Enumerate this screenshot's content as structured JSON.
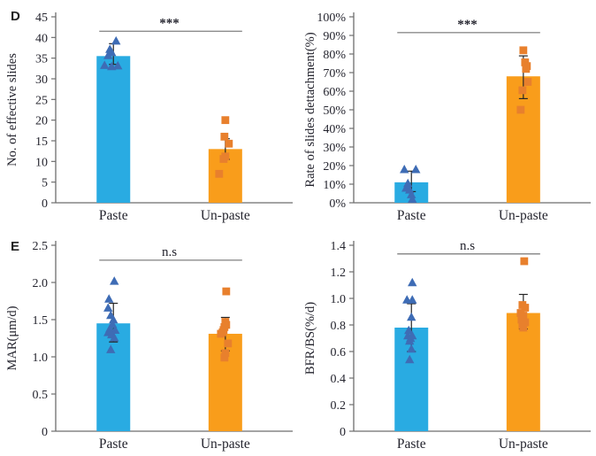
{
  "figure": {
    "panel_labels": [
      {
        "text": "D"
      },
      {
        "text": "E"
      }
    ]
  },
  "colors": {
    "paste_bar": "#29ABE2",
    "unpaste_bar": "#F99D1B",
    "paste_marker": "#3E6CB5",
    "unpaste_marker": "#E8802D",
    "error_bar": "#262626",
    "axis": "#6e6e6e",
    "sig_line": "#8c8c8c",
    "text": "#24242e"
  },
  "chart_data": [
    {
      "id": "effective-slides",
      "type": "bar",
      "panel": "D",
      "title": "",
      "xlabel": "",
      "ylabel": "No. of effective slides",
      "ylim": [
        0,
        45
      ],
      "yticks": [
        0,
        5,
        10,
        15,
        20,
        25,
        30,
        35,
        40,
        45
      ],
      "ytick_labels": [
        "0",
        "5",
        "10",
        "15",
        "20",
        "25",
        "30",
        "35",
        "40",
        "45"
      ],
      "categories": [
        "Paste",
        "Un-paste"
      ],
      "bar_values": [
        35.5,
        13
      ],
      "error_bars": [
        [
          33.5,
          38.5
        ],
        [
          10.5,
          15.5
        ]
      ],
      "marker_shapes": [
        "triangle",
        "square"
      ],
      "points": [
        [
          [
            3,
            39.2
          ],
          [
            -4,
            37.2
          ],
          [
            -2,
            36.4
          ],
          [
            -6,
            35.7
          ],
          [
            -10,
            33.3
          ],
          [
            -2,
            33.0
          ],
          [
            5,
            33.2
          ]
        ],
        [
          [
            0,
            20.0
          ],
          [
            -1,
            16.0
          ],
          [
            4,
            14.3
          ],
          [
            0,
            11.2
          ],
          [
            -2,
            10.6
          ],
          [
            -7,
            7.0
          ]
        ]
      ],
      "significance": {
        "label": "***",
        "y": 41.5
      },
      "grid": false,
      "legend": "none"
    },
    {
      "id": "slides-detachment-rate",
      "type": "bar",
      "panel": "D",
      "title": "",
      "xlabel": "",
      "ylabel": "Rate of slides dettachment(%)",
      "ylim": [
        0,
        100
      ],
      "yticks": [
        0,
        10,
        20,
        30,
        40,
        50,
        60,
        70,
        80,
        90,
        100
      ],
      "ytick_labels": [
        "0%",
        "10%",
        "20%",
        "30%",
        "40%",
        "50%",
        "60%",
        "70%",
        "80%",
        "90%",
        "100%"
      ],
      "categories": [
        "Paste",
        "Un-paste"
      ],
      "bar_values": [
        11,
        68
      ],
      "error_bars": [
        [
          6,
          17
        ],
        [
          56,
          79
        ]
      ],
      "marker_shapes": [
        "triangle",
        "square"
      ],
      "points": [
        [
          [
            -8,
            18.0
          ],
          [
            5,
            18.0
          ],
          [
            -4,
            10.5
          ],
          [
            -6,
            8.0
          ],
          [
            -2,
            7.0
          ],
          [
            0,
            4.5
          ],
          [
            1,
            2.0
          ]
        ],
        [
          [
            0,
            82.0
          ],
          [
            2,
            75.5
          ],
          [
            4,
            73.5
          ],
          [
            3,
            72.0
          ],
          [
            5,
            65.0
          ],
          [
            -1,
            60.5
          ],
          [
            -3,
            50.0
          ]
        ]
      ],
      "significance": {
        "label": "***",
        "y": 91.5
      },
      "grid": false,
      "legend": "none"
    },
    {
      "id": "mar",
      "type": "bar",
      "panel": "E",
      "title": "",
      "xlabel": "",
      "ylabel": "MAR(μm/d)",
      "ylim": [
        0,
        2.5
      ],
      "yticks": [
        0,
        0.5,
        1.0,
        1.5,
        2.0,
        2.5
      ],
      "ytick_labels": [
        "0",
        "0.5",
        "1.0",
        "1.5",
        "2.0",
        "2.5"
      ],
      "categories": [
        "Paste",
        "Un-paste"
      ],
      "bar_values": [
        1.45,
        1.31
      ],
      "error_bars": [
        [
          1.2,
          1.72
        ],
        [
          1.08,
          1.53
        ]
      ],
      "marker_shapes": [
        "triangle",
        "square"
      ],
      "points": [
        [
          [
            1,
            2.02
          ],
          [
            -5,
            1.78
          ],
          [
            -6,
            1.66
          ],
          [
            -3,
            1.56
          ],
          [
            0,
            1.5
          ],
          [
            -1,
            1.44
          ],
          [
            -4,
            1.38
          ],
          [
            2,
            1.36
          ],
          [
            -6,
            1.33
          ],
          [
            -2,
            1.3
          ],
          [
            1,
            1.26
          ],
          [
            -3,
            1.1
          ]
        ],
        [
          [
            1,
            1.88
          ],
          [
            0,
            1.47
          ],
          [
            1,
            1.43
          ],
          [
            -1,
            1.4
          ],
          [
            -2,
            1.36
          ],
          [
            -3,
            1.33
          ],
          [
            -5,
            1.31
          ],
          [
            3,
            1.18
          ],
          [
            0,
            1.05
          ],
          [
            -1,
            0.99
          ]
        ]
      ],
      "significance": {
        "label": "n.s",
        "y": 2.3
      },
      "grid": false,
      "legend": "none"
    },
    {
      "id": "bfr-bs",
      "type": "bar",
      "panel": "E",
      "title": "",
      "xlabel": "",
      "ylabel": "BFR/BS(%/d)",
      "ylim": [
        0,
        1.4
      ],
      "yticks": [
        0,
        0.2,
        0.4,
        0.6,
        0.8,
        1.0,
        1.2,
        1.4
      ],
      "ytick_labels": [
        "0",
        "0.2",
        "0.4",
        "0.6",
        "0.8",
        "1.0",
        "1.2",
        "1.4"
      ],
      "categories": [
        "Paste",
        "Un-paste"
      ],
      "bar_values": [
        0.78,
        0.89
      ],
      "error_bars": [
        [
          0.6,
          0.96
        ],
        [
          0.77,
          1.03
        ]
      ],
      "marker_shapes": [
        "triangle",
        "square"
      ],
      "points": [
        [
          [
            1,
            1.12
          ],
          [
            -5,
            0.99
          ],
          [
            1,
            0.99
          ],
          [
            0,
            0.86
          ],
          [
            -3,
            0.76
          ],
          [
            -4,
            0.72
          ],
          [
            1,
            0.72
          ],
          [
            -1,
            0.7
          ],
          [
            -2,
            0.68
          ],
          [
            0,
            0.62
          ],
          [
            -2,
            0.54
          ]
        ],
        [
          [
            1,
            1.28
          ],
          [
            -1,
            0.95
          ],
          [
            2,
            0.93
          ],
          [
            -3,
            0.89
          ],
          [
            0,
            0.87
          ],
          [
            -2,
            0.84
          ],
          [
            2,
            0.82
          ],
          [
            -1,
            0.8
          ],
          [
            0,
            0.78
          ]
        ]
      ],
      "significance": {
        "label": "n.s",
        "y": 1.335
      },
      "grid": false,
      "legend": "none"
    }
  ]
}
